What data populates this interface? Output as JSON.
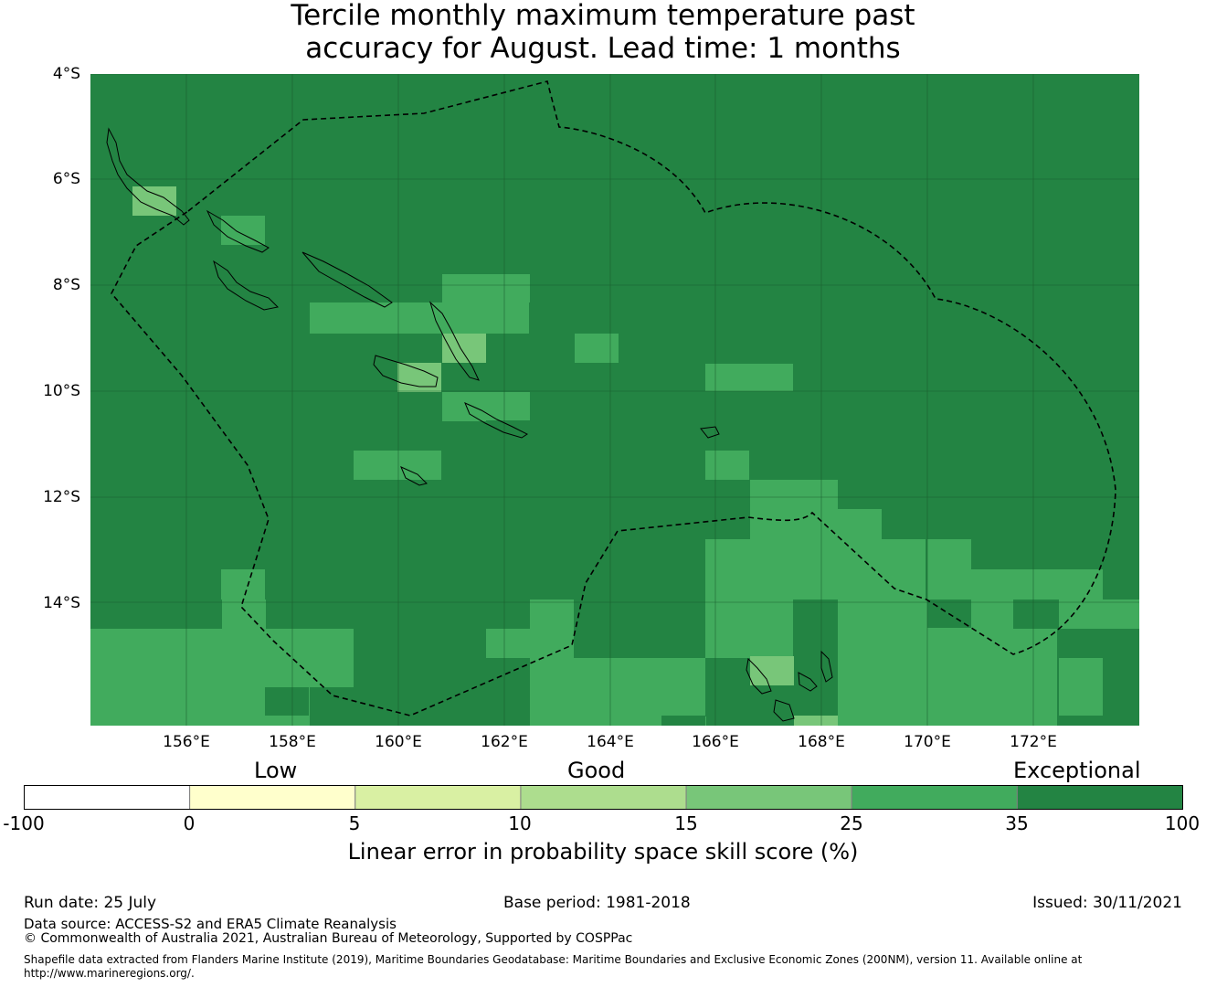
{
  "title_line1": "Tercile monthly maximum temperature past",
  "title_line2": "accuracy for August. Lead time: 1 months",
  "lat_labels": [
    "4°S",
    "6°S",
    "8°S",
    "10°S",
    "12°S",
    "14°S"
  ],
  "lon_labels": [
    "156°E",
    "158°E",
    "160°E",
    "162°E",
    "164°E",
    "166°E",
    "168°E",
    "170°E",
    "172°E"
  ],
  "colorbar": {
    "category_labels": {
      "low": "Low",
      "good": "Good",
      "exceptional": "Exceptional"
    },
    "ticks": [
      "-100",
      "0",
      "5",
      "10",
      "15",
      "25",
      "35",
      "100"
    ],
    "colors": [
      "#ffffff",
      "#ffffcc",
      "#d9f0a3",
      "#addd8e",
      "#78c679",
      "#41ab5d",
      "#238443"
    ],
    "title": "Linear error in probability space skill score (%)"
  },
  "footer": {
    "run_date": "Run date: 25 July",
    "base_period": "Base period: 1981-2018",
    "issued": "Issued: 30/11/2021",
    "data_source": "Data source: ACCESS-S2 and ERA5 Climate Reanalysis",
    "copyright": "© Commonwealth of Australia 2021, Australian Bureau of Meteorology, Supported by COSPPac",
    "shapefile_line1": "Shapefile data extracted from Flanders Marine Institute (2019), Maritime Boundaries Geodatabase: Maritime Boundaries and Exclusive Economic Zones (200NM), version 11. Available online at",
    "shapefile_line2": "http://www.marineregions.org/."
  }
}
